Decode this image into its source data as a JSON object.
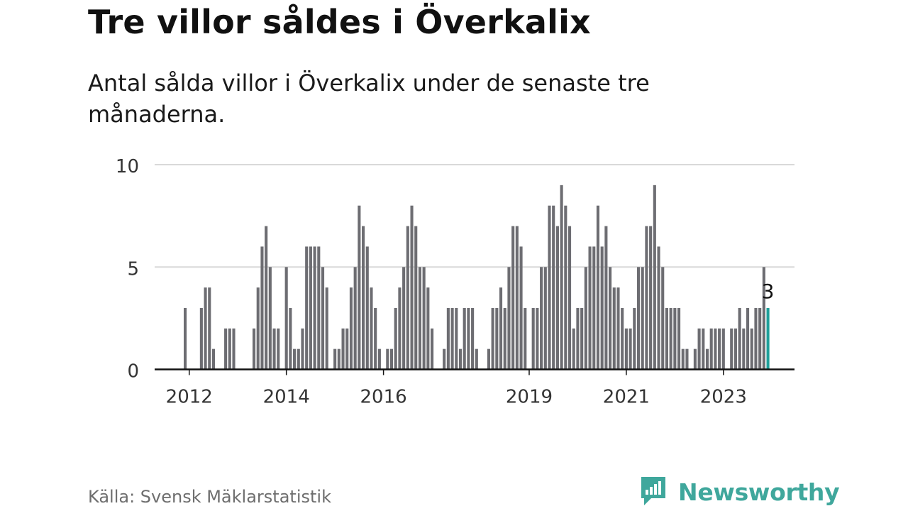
{
  "title": "Tre villor såldes i Överkalix",
  "subtitle": "Antal sålda villor i Överkalix under de senaste tre månaderna.",
  "source": "Källa: Svensk Mäklarstatistik",
  "brand": {
    "name": "Newsworthy",
    "icon": "bar-chart-speech-bubble-icon",
    "color": "#3fa79c"
  },
  "colors": {
    "bar": "#6d6d72",
    "highlight": "#1f9f9a",
    "grid": "#d9d9d9",
    "axis": "#111111"
  },
  "chart_data": {
    "type": "bar",
    "title": "Tre villor såldes i Överkalix",
    "ylabel": "",
    "xlabel": "",
    "ylim": [
      0,
      10
    ],
    "yticks": [
      0,
      5,
      10
    ],
    "x_start": "2011-12",
    "xticks": [
      {
        "label": "2012",
        "index": 1
      },
      {
        "label": "2014",
        "index": 25
      },
      {
        "label": "2016",
        "index": 49
      },
      {
        "label": "2019",
        "index": 85
      },
      {
        "label": "2021",
        "index": 109
      },
      {
        "label": "2023",
        "index": 133
      }
    ],
    "values": [
      3,
      0,
      0,
      0,
      3,
      4,
      4,
      1,
      0,
      0,
      2,
      2,
      2,
      0,
      0,
      0,
      0,
      2,
      4,
      6,
      7,
      5,
      2,
      2,
      0,
      5,
      3,
      1,
      1,
      2,
      6,
      6,
      6,
      6,
      5,
      4,
      0,
      1,
      1,
      2,
      2,
      4,
      5,
      8,
      7,
      6,
      4,
      3,
      1,
      0,
      1,
      1,
      3,
      4,
      5,
      7,
      8,
      7,
      5,
      5,
      4,
      2,
      0,
      0,
      1,
      3,
      3,
      3,
      1,
      3,
      3,
      3,
      1,
      0,
      0,
      1,
      3,
      3,
      4,
      3,
      5,
      7,
      7,
      6,
      3,
      0,
      3,
      3,
      5,
      5,
      8,
      8,
      7,
      9,
      8,
      7,
      2,
      3,
      3,
      5,
      6,
      6,
      8,
      6,
      7,
      5,
      4,
      4,
      3,
      2,
      2,
      3,
      5,
      5,
      7,
      7,
      9,
      6,
      5,
      3,
      3,
      3,
      3,
      1,
      1,
      0,
      1,
      2,
      2,
      1,
      2,
      2,
      2,
      2,
      0,
      2,
      2,
      3,
      2,
      3,
      2,
      3,
      3,
      5,
      3
    ],
    "highlight_index": 144,
    "data_label": "3"
  }
}
